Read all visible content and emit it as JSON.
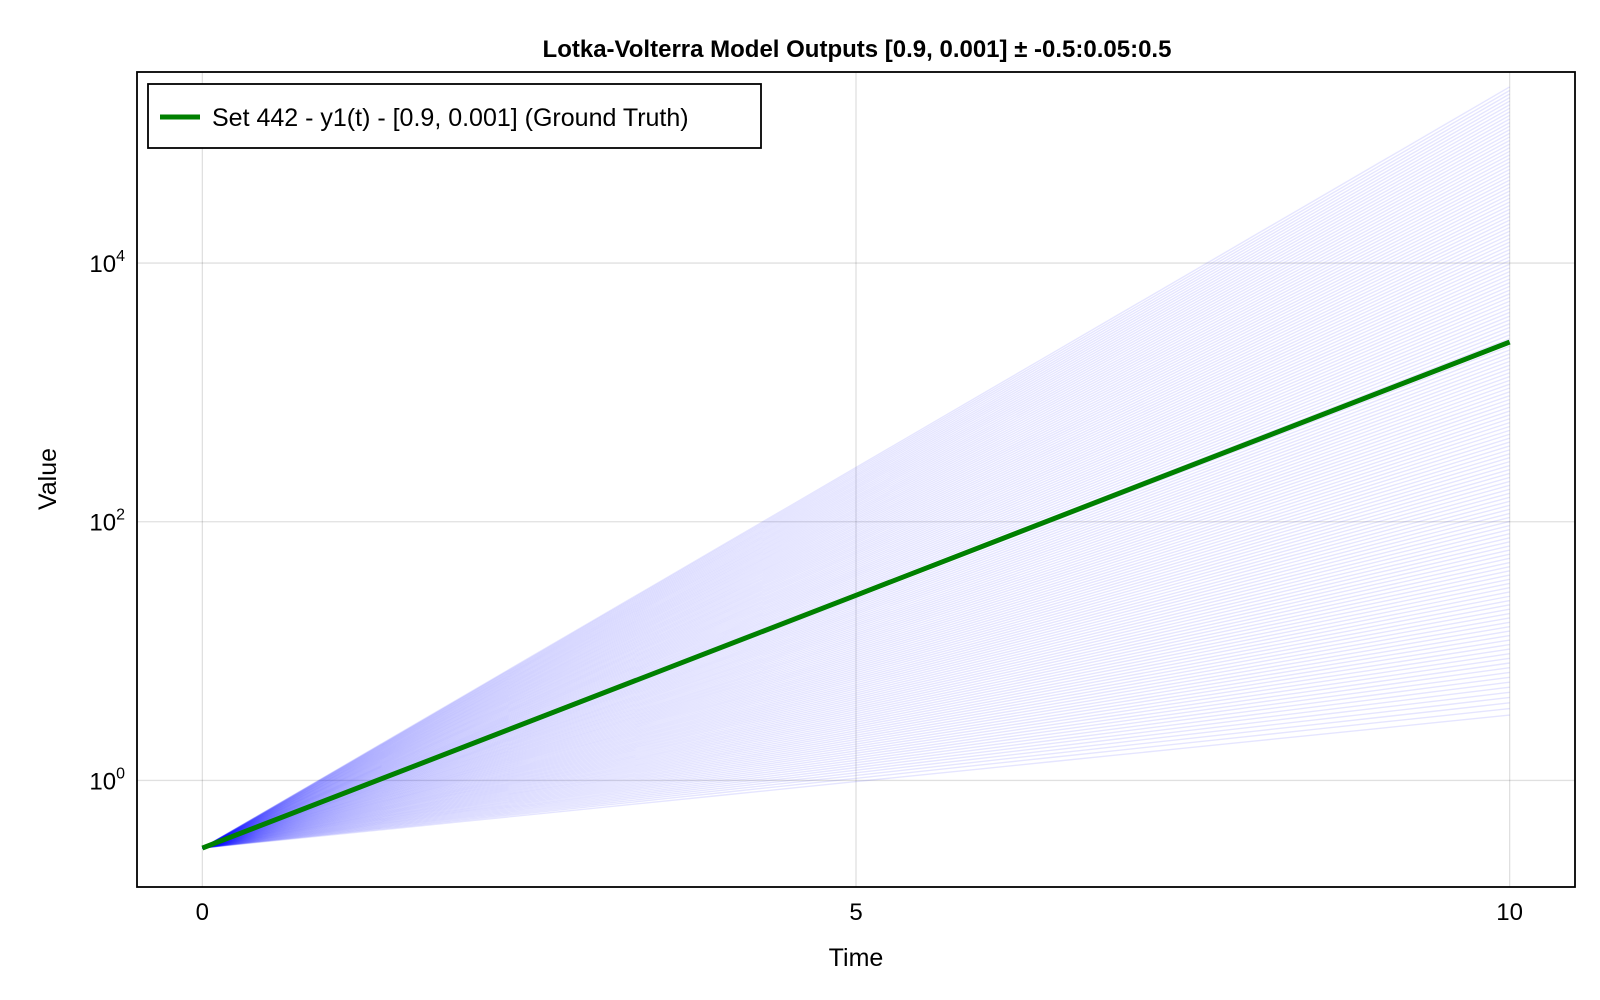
{
  "chart_data": {
    "type": "line",
    "title": "Lotka-Volterra Model Outputs [0.9, 0.001] ± -0.5:0.05:0.5",
    "xlabel": "Time",
    "ylabel": "Value",
    "x_scale": "linear",
    "y_scale": "log10",
    "xlim": [
      -0.5,
      10.5
    ],
    "ylim": [
      0.15,
      300000
    ],
    "x_ticks": [
      {
        "value": 0,
        "label": "0"
      },
      {
        "value": 5,
        "label": "5"
      },
      {
        "value": 10,
        "label": "10"
      }
    ],
    "y_ticks": [
      {
        "value": 1,
        "base": "10",
        "exp": "0"
      },
      {
        "value": 100,
        "base": "10",
        "exp": "2"
      },
      {
        "value": 10000,
        "base": "10",
        "exp": "4"
      }
    ],
    "grid": true,
    "legend_position": "top-left",
    "ensemble": {
      "initial_value": 0.3,
      "t_start": 0,
      "t_end": 10,
      "final_value_min": 3.2,
      "final_value_max": 230000,
      "color": "#0000ff",
      "opacity": 0.1
    },
    "series": [
      {
        "name": "Set 442 - y1(t) - [0.9, 0.001] (Ground Truth)",
        "color": "#008000",
        "x": [
          0,
          5,
          10
        ],
        "values": [
          0.3,
          27,
          2450
        ]
      }
    ]
  }
}
